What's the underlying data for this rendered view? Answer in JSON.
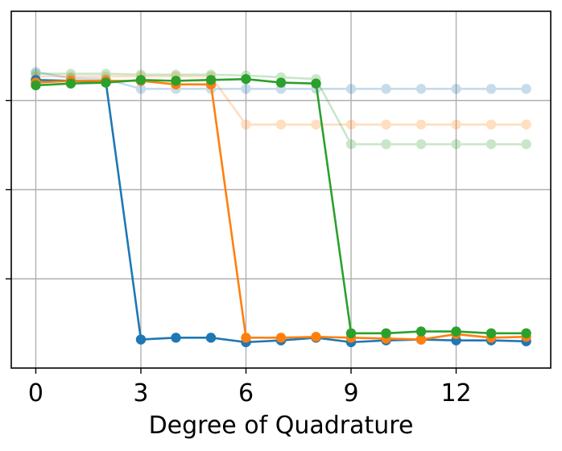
{
  "chart_data": {
    "type": "line",
    "title": "",
    "xlabel": "Degree of Quadrature",
    "ylabel": "",
    "xlim": [
      -0.7,
      14.7
    ],
    "ylim": [
      0,
      4
    ],
    "x_ticks": [
      0,
      3,
      6,
      9,
      12
    ],
    "x_tick_labels": [
      "0",
      "3",
      "6",
      "9",
      "12"
    ],
    "y_gridlines": [
      1,
      2,
      3
    ],
    "grid": true,
    "legend": "none",
    "x": [
      0,
      1,
      2,
      3,
      4,
      5,
      6,
      7,
      8,
      9,
      10,
      11,
      12,
      13,
      14
    ],
    "series": [
      {
        "color": "#1f77b4",
        "opacity": 0.25,
        "values": [
          3.32,
          3.25,
          3.24,
          3.13,
          3.13,
          3.13,
          3.13,
          3.13,
          3.13,
          3.13,
          3.13,
          3.13,
          3.13,
          3.13,
          3.13
        ]
      },
      {
        "color": "#ff7f0e",
        "opacity": 0.25,
        "values": [
          3.27,
          3.27,
          3.27,
          3.27,
          3.27,
          3.27,
          2.73,
          2.73,
          2.73,
          2.73,
          2.73,
          2.73,
          2.73,
          2.73,
          2.73
        ]
      },
      {
        "color": "#2ca02c",
        "opacity": 0.25,
        "values": [
          3.3,
          3.3,
          3.3,
          3.29,
          3.29,
          3.29,
          3.28,
          3.26,
          3.24,
          2.51,
          2.51,
          2.51,
          2.51,
          2.51,
          2.51
        ]
      },
      {
        "color": "#1f77b4",
        "opacity": 1,
        "values": [
          3.23,
          3.22,
          3.21,
          0.32,
          0.34,
          0.34,
          0.29,
          0.31,
          0.34,
          0.29,
          0.31,
          0.32,
          0.31,
          0.31,
          0.3
        ]
      },
      {
        "color": "#ff7f0e",
        "opacity": 1,
        "values": [
          3.2,
          3.22,
          3.22,
          3.22,
          3.18,
          3.18,
          0.34,
          0.34,
          0.35,
          0.34,
          0.33,
          0.32,
          0.38,
          0.34,
          0.35
        ]
      },
      {
        "color": "#2ca02c",
        "opacity": 1,
        "values": [
          3.17,
          3.19,
          3.2,
          3.23,
          3.22,
          3.23,
          3.24,
          3.2,
          3.19,
          0.39,
          0.39,
          0.41,
          0.41,
          0.39,
          0.39
        ]
      }
    ]
  }
}
